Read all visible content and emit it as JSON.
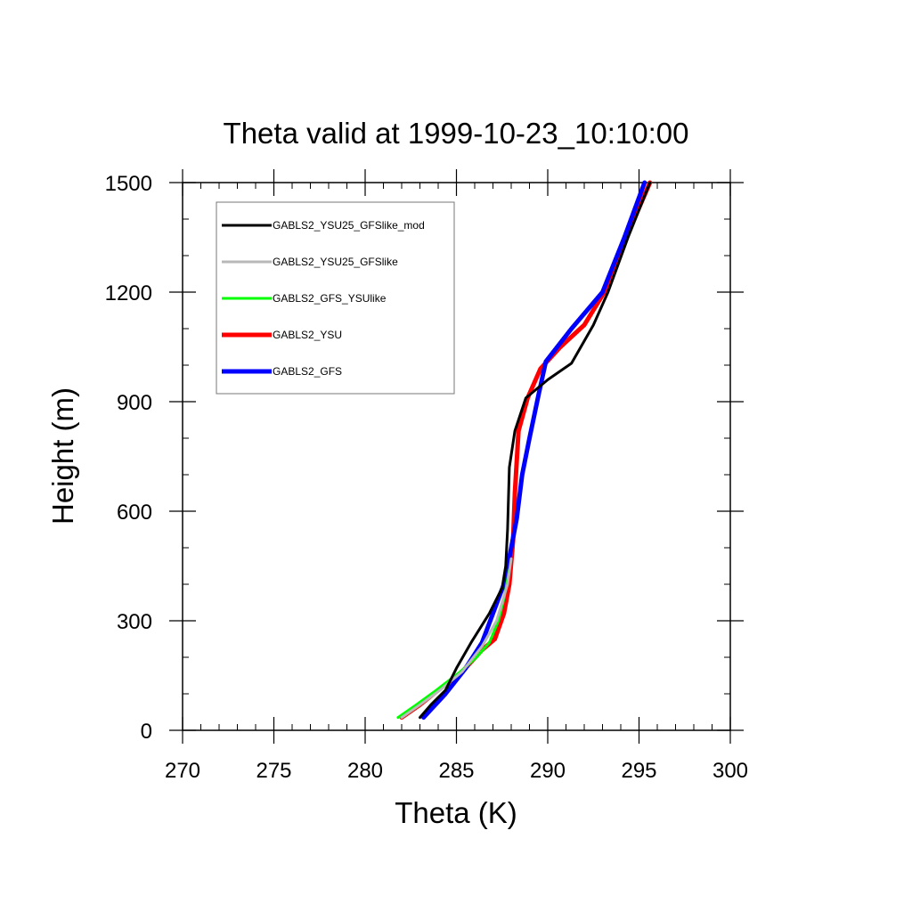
{
  "chart_data": {
    "type": "line",
    "title": "Theta valid at 1999-10-23_10:10:00",
    "xlabel": "Theta (K)",
    "ylabel": "Height (m)",
    "xlim": [
      270,
      300
    ],
    "ylim": [
      0,
      1500
    ],
    "xticks": [
      "270",
      "275",
      "280",
      "285",
      "290",
      "295",
      "300"
    ],
    "yticks": [
      "0",
      "300",
      "600",
      "900",
      "1200",
      "1500"
    ],
    "grid": false,
    "legend_position": "top-left",
    "series": [
      {
        "name": "GABLS2_YSU25_GFSlike_mod",
        "color": "#000000",
        "width": 3,
        "points": [
          [
            283.0,
            35
          ],
          [
            283.6,
            70
          ],
          [
            284.4,
            110
          ],
          [
            285.0,
            170
          ],
          [
            285.8,
            240
          ],
          [
            286.8,
            320
          ],
          [
            287.5,
            390
          ],
          [
            287.7,
            450
          ],
          [
            287.8,
            550
          ],
          [
            287.9,
            720
          ],
          [
            288.2,
            820
          ],
          [
            288.8,
            910
          ],
          [
            290.0,
            960
          ],
          [
            291.3,
            1005
          ],
          [
            292.5,
            1110
          ],
          [
            293.3,
            1200
          ],
          [
            294.4,
            1350
          ],
          [
            295.6,
            1500
          ]
        ]
      },
      {
        "name": "GABLS2_YSU25_GFSlike",
        "color": "#b8b8b8",
        "width": 3,
        "points": [
          [
            282.0,
            35
          ],
          [
            283.0,
            70
          ],
          [
            284.1,
            110
          ],
          [
            285.3,
            160
          ],
          [
            286.4,
            230
          ],
          [
            287.2,
            300
          ],
          [
            287.8,
            400
          ],
          [
            288.0,
            470
          ]
        ]
      },
      {
        "name": "GABLS2_GFS_YSUlike",
        "color": "#00ff00",
        "width": 3,
        "points": [
          [
            281.8,
            35
          ],
          [
            282.8,
            70
          ],
          [
            283.9,
            110
          ],
          [
            285.2,
            160
          ],
          [
            286.1,
            200
          ],
          [
            286.8,
            240
          ],
          [
            287.3,
            300
          ],
          [
            287.6,
            360
          ],
          [
            287.9,
            440
          ]
        ]
      },
      {
        "name": "GABLS2_YSU",
        "color": "#ff0000",
        "width": 5,
        "points": [
          [
            282.0,
            35
          ],
          [
            283.0,
            70
          ],
          [
            284.0,
            110
          ],
          [
            285.3,
            160
          ],
          [
            286.4,
            220
          ],
          [
            287.1,
            250
          ],
          [
            287.6,
            320
          ],
          [
            287.9,
            400
          ],
          [
            288.1,
            520
          ],
          [
            288.2,
            650
          ],
          [
            288.4,
            820
          ],
          [
            288.9,
            910
          ],
          [
            289.6,
            990
          ],
          [
            290.7,
            1050
          ],
          [
            292.0,
            1110
          ],
          [
            293.1,
            1200
          ],
          [
            294.3,
            1350
          ],
          [
            295.6,
            1500
          ]
        ]
      },
      {
        "name": "GABLS2_GFS",
        "color": "#0000ff",
        "width": 5,
        "points": [
          [
            283.2,
            35
          ],
          [
            284.4,
            100
          ],
          [
            285.5,
            170
          ],
          [
            286.4,
            240
          ],
          [
            287.0,
            320
          ],
          [
            287.6,
            400
          ],
          [
            288.0,
            500
          ],
          [
            288.3,
            580
          ],
          [
            288.6,
            700
          ],
          [
            289.0,
            800
          ],
          [
            289.5,
            920
          ],
          [
            289.9,
            1010
          ],
          [
            291.3,
            1100
          ],
          [
            293.0,
            1200
          ],
          [
            294.2,
            1350
          ],
          [
            295.3,
            1500
          ]
        ]
      }
    ]
  }
}
